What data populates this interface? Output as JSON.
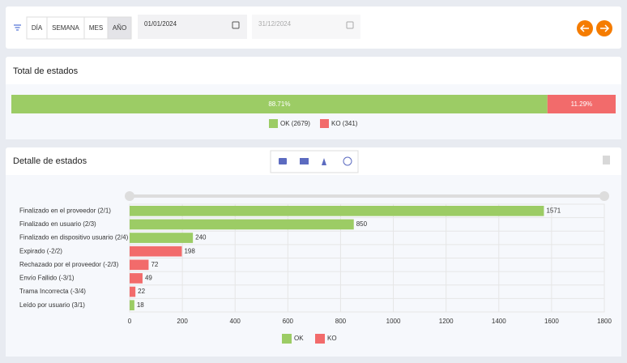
{
  "toolbar": {
    "periods": [
      "DÍA",
      "SEMANA",
      "MES",
      "AÑO"
    ],
    "active_period": 3,
    "start_date": "01/01/2024",
    "end_date": "31/12/2024"
  },
  "total": {
    "title": "Total de estados",
    "chart_data": {
      "type": "bar",
      "orientation": "horizontal",
      "stacked": true,
      "xlim": [
        0,
        100
      ],
      "series": [
        {
          "name": "OK (2679)",
          "color": "#9ccc65",
          "values": [
            88.71
          ],
          "value_labels": [
            "88.71%"
          ]
        },
        {
          "name": "KO (341)",
          "color": "#f26b6b",
          "values": [
            11.29
          ],
          "value_labels": [
            "11.29%"
          ]
        }
      ]
    }
  },
  "detail": {
    "title": "Detalle de estados",
    "chart_data": {
      "type": "bar",
      "orientation": "horizontal",
      "categories": [
        "Finalizado en el proveedor (2/1)",
        "Finalizado en usuario (2/3)",
        "Finalizado en dispositivo usuario (2/4)",
        "Expirado (-2/2)",
        "Rechazado por el proveedor (-2/3)",
        "Envío Fallido (-3/1)",
        "Trama Incorrecta (-3/4)",
        "Leído por usuario (3/1)"
      ],
      "series": [
        {
          "name": "OK",
          "color": "#9ccc65",
          "values": [
            1571,
            850,
            240,
            null,
            null,
            null,
            null,
            18
          ]
        },
        {
          "name": "KO",
          "color": "#f26b6b",
          "values": [
            null,
            null,
            null,
            198,
            72,
            49,
            22,
            null
          ]
        }
      ],
      "xlim": [
        0,
        1800
      ],
      "xticks": [
        0,
        200,
        400,
        600,
        800,
        1000,
        1200,
        1400,
        1600,
        1800
      ],
      "grid": true
    }
  }
}
